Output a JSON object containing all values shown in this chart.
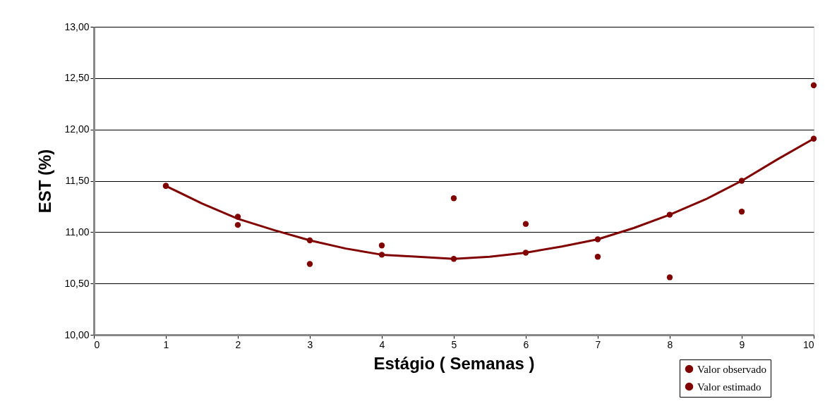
{
  "chart_data": {
    "type": "scatter",
    "xlabel": "Estágio ( Semanas )",
    "ylabel": "EST (%)",
    "xlim": [
      0,
      10
    ],
    "xticks": [
      0,
      1,
      2,
      3,
      4,
      5,
      6,
      7,
      8,
      9,
      10
    ],
    "ylim": [
      10,
      13
    ],
    "yticks": [
      {
        "value": 10,
        "label": "10,00"
      },
      {
        "value": 10.5,
        "label": "10,50"
      },
      {
        "value": 11,
        "label": "11,00"
      },
      {
        "value": 11.5,
        "label": "11,50"
      },
      {
        "value": 12,
        "label": "12,00"
      },
      {
        "value": 12.5,
        "label": "12,50"
      },
      {
        "value": 13,
        "label": "13,00"
      }
    ],
    "grid": "y",
    "legend": "bottom right",
    "series": [
      {
        "name": "Valor observado",
        "color": "#800000",
        "x": [
          1,
          1,
          2,
          2,
          3,
          3,
          4,
          4,
          5,
          5,
          6,
          6,
          7,
          7,
          8,
          8,
          9,
          9,
          10,
          10
        ],
        "values": [
          11.45,
          11.45,
          11.15,
          11.07,
          10.92,
          10.69,
          10.87,
          10.78,
          11.33,
          10.74,
          11.08,
          10.8,
          10.93,
          10.76,
          11.17,
          10.56,
          11.5,
          11.2,
          12.43,
          11.91
        ]
      },
      {
        "name": "Valor estimado",
        "type": "line",
        "color": "#800000",
        "x": [
          1,
          1.5,
          2,
          2.5,
          3,
          3.5,
          4,
          4.5,
          5,
          5.5,
          6,
          6.5,
          7,
          7.5,
          8,
          8.5,
          9,
          9.5,
          10
        ],
        "values": [
          11.45,
          11.28,
          11.13,
          11.02,
          10.92,
          10.84,
          10.78,
          10.76,
          10.74,
          10.76,
          10.8,
          10.86,
          10.93,
          11.04,
          11.17,
          11.32,
          11.5,
          11.71,
          11.91
        ]
      }
    ]
  }
}
